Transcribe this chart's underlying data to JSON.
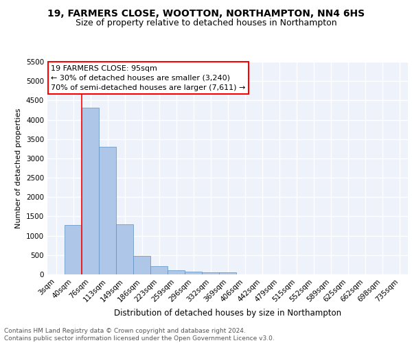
{
  "title1": "19, FARMERS CLOSE, WOOTTON, NORTHAMPTON, NN4 6HS",
  "title2": "Size of property relative to detached houses in Northampton",
  "xlabel": "Distribution of detached houses by size in Northampton",
  "ylabel": "Number of detached properties",
  "bar_labels": [
    "3sqm",
    "40sqm",
    "76sqm",
    "113sqm",
    "149sqm",
    "186sqm",
    "223sqm",
    "259sqm",
    "296sqm",
    "332sqm",
    "369sqm",
    "406sqm",
    "442sqm",
    "479sqm",
    "515sqm",
    "552sqm",
    "589sqm",
    "625sqm",
    "662sqm",
    "698sqm",
    "735sqm"
  ],
  "bar_values": [
    0,
    1270,
    4320,
    3300,
    1290,
    480,
    215,
    100,
    75,
    55,
    60,
    0,
    0,
    0,
    0,
    0,
    0,
    0,
    0,
    0,
    0
  ],
  "bar_color": "#aec6e8",
  "bar_edge_color": "#5a8fc0",
  "annotation_line1": "19 FARMERS CLOSE: 95sqm",
  "annotation_line2": "← 30% of detached houses are smaller (3,240)",
  "annotation_line3": "70% of semi-detached houses are larger (7,611) →",
  "red_line_x": 1.5,
  "ylim": [
    0,
    5500
  ],
  "yticks": [
    0,
    500,
    1000,
    1500,
    2000,
    2500,
    3000,
    3500,
    4000,
    4500,
    5000,
    5500
  ],
  "background_color": "#eef2fb",
  "grid_color": "#ffffff",
  "footer_text": "Contains HM Land Registry data © Crown copyright and database right 2024.\nContains public sector information licensed under the Open Government Licence v3.0.",
  "title1_fontsize": 10,
  "title2_fontsize": 9,
  "xlabel_fontsize": 8.5,
  "ylabel_fontsize": 8,
  "tick_fontsize": 7.5,
  "annotation_fontsize": 8,
  "footer_fontsize": 6.5
}
